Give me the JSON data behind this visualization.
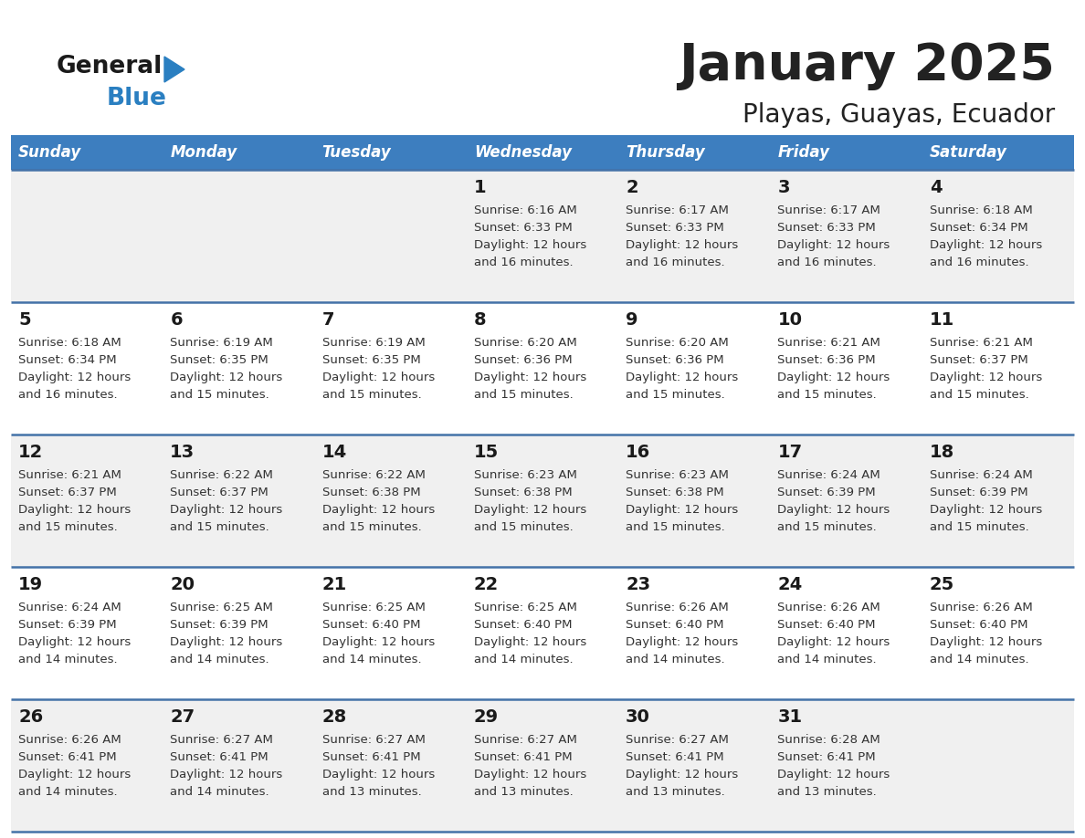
{
  "title": "January 2025",
  "subtitle": "Playas, Guayas, Ecuador",
  "header_bg_color": "#3d7ebf",
  "header_text_color": "#ffffff",
  "day_names": [
    "Sunday",
    "Monday",
    "Tuesday",
    "Wednesday",
    "Thursday",
    "Friday",
    "Saturday"
  ],
  "row_bg_even": "#f0f0f0",
  "row_bg_odd": "#ffffff",
  "cell_border_color": "#4472a8",
  "title_color": "#222222",
  "day_num_color": "#1a1a1a",
  "info_color": "#333333",
  "logo_general_color": "#1a1a1a",
  "logo_blue_color": "#2a7fc1",
  "weeks": [
    [
      {
        "date": "",
        "sunrise": "",
        "sunset": "",
        "daylight": ""
      },
      {
        "date": "",
        "sunrise": "",
        "sunset": "",
        "daylight": ""
      },
      {
        "date": "",
        "sunrise": "",
        "sunset": "",
        "daylight": ""
      },
      {
        "date": "1",
        "sunrise": "6:16 AM",
        "sunset": "6:33 PM",
        "daylight": "12 hours and 16 minutes."
      },
      {
        "date": "2",
        "sunrise": "6:17 AM",
        "sunset": "6:33 PM",
        "daylight": "12 hours and 16 minutes."
      },
      {
        "date": "3",
        "sunrise": "6:17 AM",
        "sunset": "6:33 PM",
        "daylight": "12 hours and 16 minutes."
      },
      {
        "date": "4",
        "sunrise": "6:18 AM",
        "sunset": "6:34 PM",
        "daylight": "12 hours and 16 minutes."
      }
    ],
    [
      {
        "date": "5",
        "sunrise": "6:18 AM",
        "sunset": "6:34 PM",
        "daylight": "12 hours and 16 minutes."
      },
      {
        "date": "6",
        "sunrise": "6:19 AM",
        "sunset": "6:35 PM",
        "daylight": "12 hours and 15 minutes."
      },
      {
        "date": "7",
        "sunrise": "6:19 AM",
        "sunset": "6:35 PM",
        "daylight": "12 hours and 15 minutes."
      },
      {
        "date": "8",
        "sunrise": "6:20 AM",
        "sunset": "6:36 PM",
        "daylight": "12 hours and 15 minutes."
      },
      {
        "date": "9",
        "sunrise": "6:20 AM",
        "sunset": "6:36 PM",
        "daylight": "12 hours and 15 minutes."
      },
      {
        "date": "10",
        "sunrise": "6:21 AM",
        "sunset": "6:36 PM",
        "daylight": "12 hours and 15 minutes."
      },
      {
        "date": "11",
        "sunrise": "6:21 AM",
        "sunset": "6:37 PM",
        "daylight": "12 hours and 15 minutes."
      }
    ],
    [
      {
        "date": "12",
        "sunrise": "6:21 AM",
        "sunset": "6:37 PM",
        "daylight": "12 hours and 15 minutes."
      },
      {
        "date": "13",
        "sunrise": "6:22 AM",
        "sunset": "6:37 PM",
        "daylight": "12 hours and 15 minutes."
      },
      {
        "date": "14",
        "sunrise": "6:22 AM",
        "sunset": "6:38 PM",
        "daylight": "12 hours and 15 minutes."
      },
      {
        "date": "15",
        "sunrise": "6:23 AM",
        "sunset": "6:38 PM",
        "daylight": "12 hours and 15 minutes."
      },
      {
        "date": "16",
        "sunrise": "6:23 AM",
        "sunset": "6:38 PM",
        "daylight": "12 hours and 15 minutes."
      },
      {
        "date": "17",
        "sunrise": "6:24 AM",
        "sunset": "6:39 PM",
        "daylight": "12 hours and 15 minutes."
      },
      {
        "date": "18",
        "sunrise": "6:24 AM",
        "sunset": "6:39 PM",
        "daylight": "12 hours and 15 minutes."
      }
    ],
    [
      {
        "date": "19",
        "sunrise": "6:24 AM",
        "sunset": "6:39 PM",
        "daylight": "12 hours and 14 minutes."
      },
      {
        "date": "20",
        "sunrise": "6:25 AM",
        "sunset": "6:39 PM",
        "daylight": "12 hours and 14 minutes."
      },
      {
        "date": "21",
        "sunrise": "6:25 AM",
        "sunset": "6:40 PM",
        "daylight": "12 hours and 14 minutes."
      },
      {
        "date": "22",
        "sunrise": "6:25 AM",
        "sunset": "6:40 PM",
        "daylight": "12 hours and 14 minutes."
      },
      {
        "date": "23",
        "sunrise": "6:26 AM",
        "sunset": "6:40 PM",
        "daylight": "12 hours and 14 minutes."
      },
      {
        "date": "24",
        "sunrise": "6:26 AM",
        "sunset": "6:40 PM",
        "daylight": "12 hours and 14 minutes."
      },
      {
        "date": "25",
        "sunrise": "6:26 AM",
        "sunset": "6:40 PM",
        "daylight": "12 hours and 14 minutes."
      }
    ],
    [
      {
        "date": "26",
        "sunrise": "6:26 AM",
        "sunset": "6:41 PM",
        "daylight": "12 hours and 14 minutes."
      },
      {
        "date": "27",
        "sunrise": "6:27 AM",
        "sunset": "6:41 PM",
        "daylight": "12 hours and 14 minutes."
      },
      {
        "date": "28",
        "sunrise": "6:27 AM",
        "sunset": "6:41 PM",
        "daylight": "12 hours and 13 minutes."
      },
      {
        "date": "29",
        "sunrise": "6:27 AM",
        "sunset": "6:41 PM",
        "daylight": "12 hours and 13 minutes."
      },
      {
        "date": "30",
        "sunrise": "6:27 AM",
        "sunset": "6:41 PM",
        "daylight": "12 hours and 13 minutes."
      },
      {
        "date": "31",
        "sunrise": "6:28 AM",
        "sunset": "6:41 PM",
        "daylight": "12 hours and 13 minutes."
      },
      {
        "date": "",
        "sunrise": "",
        "sunset": "",
        "daylight": ""
      }
    ]
  ],
  "figsize": [
    11.88,
    9.18
  ],
  "dpi": 100
}
